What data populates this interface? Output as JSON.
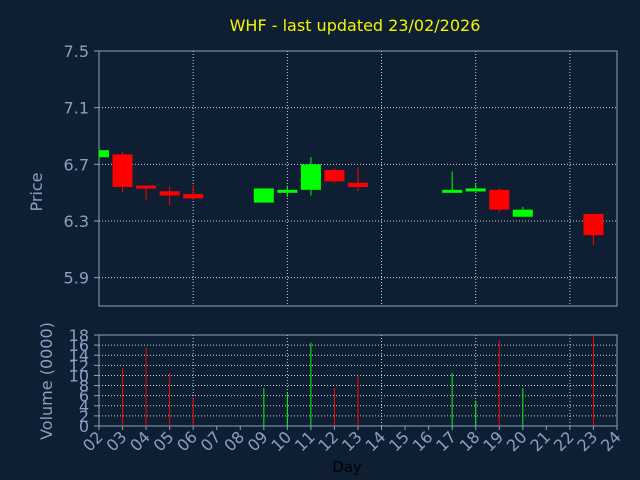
{
  "chart_data": {
    "type": "candlestick",
    "title": "WHF - last updated 23/02/2026",
    "xlabel": "Day",
    "x_ticks": [
      "02",
      "03",
      "04",
      "05",
      "06",
      "07",
      "08",
      "09",
      "10",
      "11",
      "12",
      "13",
      "14",
      "15",
      "16",
      "17",
      "18",
      "19",
      "20",
      "21",
      "22",
      "23",
      "24"
    ],
    "price_panel": {
      "ylabel": "Price",
      "ylim": [
        5.7,
        7.5
      ],
      "y_ticks": [
        "7.5",
        "7.1",
        "6.7",
        "6.3",
        "5.9"
      ],
      "grid": true,
      "candles": [
        {
          "day": "02",
          "open": 6.75,
          "high": 6.8,
          "low": 6.75,
          "close": 6.8
        },
        {
          "day": "03",
          "open": 6.77,
          "high": 6.79,
          "low": 6.5,
          "close": 6.54
        },
        {
          "day": "04",
          "open": 6.55,
          "high": 6.55,
          "low": 6.45,
          "close": 6.53
        },
        {
          "day": "05",
          "open": 6.51,
          "high": 6.55,
          "low": 6.41,
          "close": 6.48
        },
        {
          "day": "06",
          "open": 6.49,
          "high": 6.55,
          "low": 6.45,
          "close": 6.46
        },
        {
          "day": "09",
          "open": 6.43,
          "high": 6.53,
          "low": 6.43,
          "close": 6.53
        },
        {
          "day": "10",
          "open": 6.5,
          "high": 6.55,
          "low": 6.47,
          "close": 6.52
        },
        {
          "day": "11",
          "open": 6.52,
          "high": 6.75,
          "low": 6.48,
          "close": 6.7
        },
        {
          "day": "12",
          "open": 6.66,
          "high": 6.67,
          "low": 6.57,
          "close": 6.58
        },
        {
          "day": "13",
          "open": 6.57,
          "high": 6.68,
          "low": 6.51,
          "close": 6.54
        },
        {
          "day": "17",
          "open": 6.51,
          "high": 6.65,
          "low": 6.5,
          "close": 6.52
        },
        {
          "day": "18",
          "open": 6.52,
          "high": 6.56,
          "low": 6.51,
          "close": 6.53
        },
        {
          "day": "19",
          "open": 6.52,
          "high": 6.53,
          "low": 6.36,
          "close": 6.38
        },
        {
          "day": "20",
          "open": 6.33,
          "high": 6.4,
          "low": 6.33,
          "close": 6.38
        },
        {
          "day": "23",
          "open": 6.35,
          "high": 6.35,
          "low": 6.13,
          "close": 6.2
        }
      ]
    },
    "volume_panel": {
      "ylabel": "Volume (0000)",
      "ylim": [
        0,
        18
      ],
      "y_ticks": [
        "18",
        "16",
        "14",
        "12",
        "10",
        "8",
        "6",
        "4",
        "2",
        "0"
      ],
      "grid": true,
      "bars": [
        {
          "day": "03",
          "value": 11.5,
          "direction": "down"
        },
        {
          "day": "04",
          "value": 15.5,
          "direction": "down"
        },
        {
          "day": "05",
          "value": 10.5,
          "direction": "down"
        },
        {
          "day": "06",
          "value": 5.5,
          "direction": "down"
        },
        {
          "day": "09",
          "value": 7.5,
          "direction": "up"
        },
        {
          "day": "10",
          "value": 6.5,
          "direction": "up"
        },
        {
          "day": "11",
          "value": 16.5,
          "direction": "up"
        },
        {
          "day": "12",
          "value": 7.5,
          "direction": "down"
        },
        {
          "day": "13",
          "value": 10.0,
          "direction": "down"
        },
        {
          "day": "17",
          "value": 10.5,
          "direction": "up"
        },
        {
          "day": "18",
          "value": 5.0,
          "direction": "up"
        },
        {
          "day": "19",
          "value": 17.0,
          "direction": "down"
        },
        {
          "day": "20",
          "value": 7.5,
          "direction": "up"
        },
        {
          "day": "23",
          "value": 18.0,
          "direction": "down"
        }
      ]
    }
  },
  "colors": {
    "background": "#0f1f33",
    "up": "#00ff00",
    "down": "#ff0000",
    "frame": "#8aa0c0",
    "title": "#f4f400"
  }
}
